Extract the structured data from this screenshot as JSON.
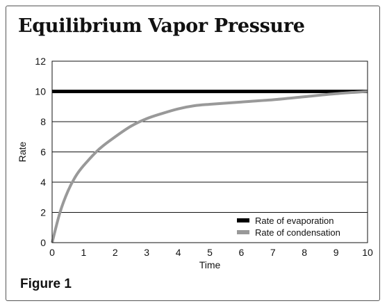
{
  "figure_label": "Figure 1",
  "chart_data": {
    "type": "line",
    "title": "Equilibrium Vapor Pressure",
    "xlabel": "Time",
    "ylabel": "Rate",
    "xlim": [
      0,
      10
    ],
    "ylim": [
      0,
      12
    ],
    "xticks": [
      0,
      1,
      2,
      3,
      4,
      5,
      6,
      7,
      8,
      9,
      10
    ],
    "yticks": [
      0,
      2,
      4,
      6,
      8,
      10,
      12
    ],
    "grid": "horizontal",
    "legend_position": "bottom-right",
    "series": [
      {
        "name": "Rate of evaporation",
        "color": "#000000",
        "x": [
          0,
          10
        ],
        "y": [
          10,
          10
        ]
      },
      {
        "name": "Rate of condensation",
        "color": "#999999",
        "x": [
          0,
          0.25,
          0.5,
          0.75,
          1,
          1.5,
          2,
          2.5,
          3,
          3.5,
          4,
          4.5,
          5,
          6,
          7,
          8,
          9,
          10
        ],
        "y": [
          0,
          2.0,
          3.4,
          4.4,
          5.1,
          6.2,
          7.0,
          7.7,
          8.2,
          8.55,
          8.85,
          9.05,
          9.15,
          9.3,
          9.45,
          9.65,
          9.85,
          10
        ]
      }
    ]
  }
}
